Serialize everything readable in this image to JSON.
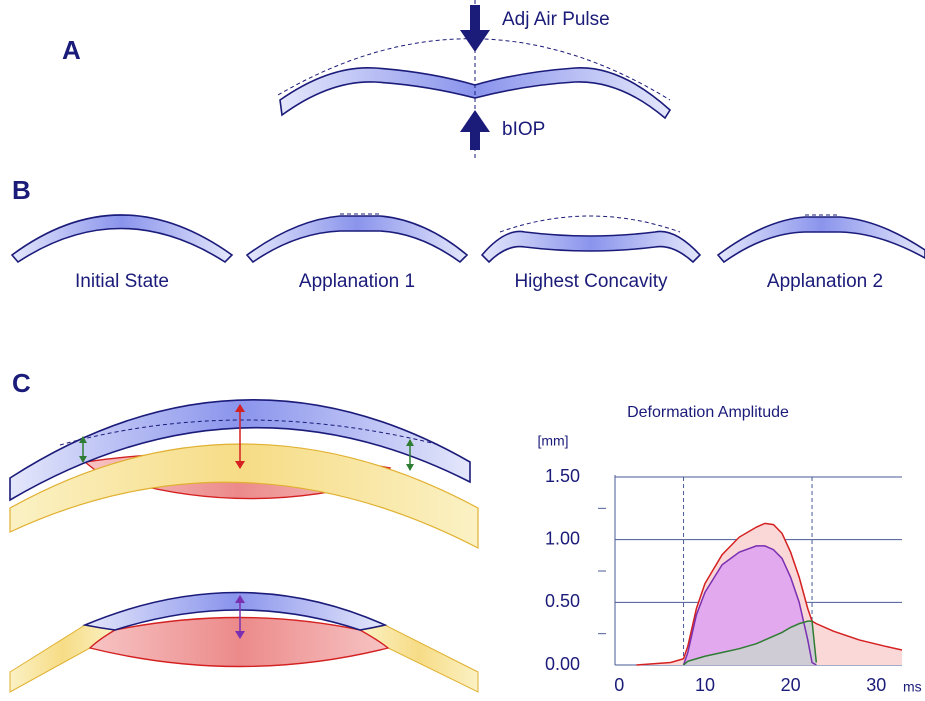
{
  "panel_a": {
    "label": "A",
    "top_arrow": "Adj Air Pulse",
    "bottom_arrow": "bIOP"
  },
  "panel_b": {
    "label": "B",
    "stages": [
      "Initial State",
      "Applanation 1",
      "Highest Concavity",
      "Applanation 2"
    ]
  },
  "panel_c": {
    "label": "C"
  },
  "chart_data": {
    "type": "line",
    "title": "Deformation Amplitude",
    "y_unit": "[mm]",
    "x_unit": "ms",
    "x": [
      2,
      6,
      7.5,
      8,
      9,
      10,
      12,
      14,
      16,
      17,
      18,
      19,
      20,
      21,
      22,
      22.5,
      23,
      25,
      28,
      31,
      33
    ],
    "series": [
      {
        "color": "#d42020",
        "fill_color": "#fbd8d8",
        "values": [
          0,
          0.02,
          0.05,
          0.15,
          0.45,
          0.65,
          0.88,
          1.02,
          1.1,
          1.13,
          1.12,
          1.05,
          0.9,
          0.7,
          0.45,
          0.35,
          0.33,
          0.27,
          0.2,
          0.15,
          0.12
        ]
      },
      {
        "color": "#7a2fb0",
        "fill_color": "#e2a9ee",
        "values": [
          null,
          null,
          0,
          0.1,
          0.4,
          0.58,
          0.8,
          0.9,
          0.95,
          0.95,
          0.92,
          0.85,
          0.7,
          0.5,
          0.2,
          0.02,
          0,
          null,
          null,
          null,
          null
        ]
      },
      {
        "color": "#2e7d32",
        "fill_color": "#d0ccd6",
        "values": [
          null,
          null,
          0,
          0.03,
          0.05,
          0.07,
          0.1,
          0.13,
          0.17,
          0.2,
          0.23,
          0.26,
          0.3,
          0.33,
          0.35,
          0.35,
          0.02,
          null,
          null,
          null,
          null
        ]
      }
    ],
    "vlines": [
      7.5,
      22.5
    ],
    "xlim": [
      -0.5,
      33
    ],
    "ylim": [
      0,
      1.5
    ],
    "xticks": [
      0,
      10,
      20,
      30
    ],
    "yticks": [
      {
        "value": 0,
        "label": "0.00"
      },
      {
        "value": 0.5,
        "label": "0.50"
      },
      {
        "value": 1,
        "label": "1.00"
      },
      {
        "value": 1.5,
        "label": "1.50"
      }
    ],
    "minor_yticks": [
      0.25,
      0.75,
      1.25
    ],
    "grid": true
  }
}
